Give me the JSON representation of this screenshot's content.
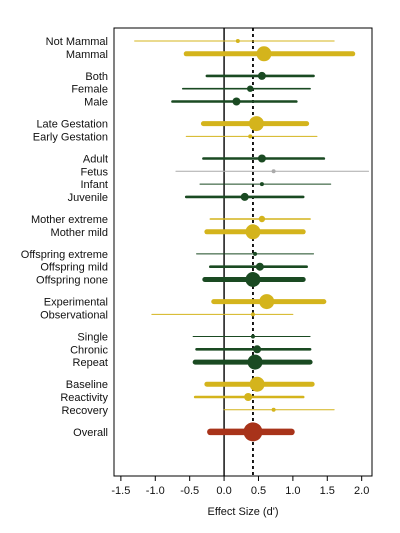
{
  "chart_data": {
    "type": "forest",
    "xlabel": "Effect Size (d')",
    "xlim": [
      -1.6,
      2.15
    ],
    "xticks": [
      -1.5,
      -1.0,
      -0.5,
      0.0,
      0.5,
      1.0,
      1.5,
      2.0
    ],
    "xtick_labels": [
      "-1.5",
      "-1.0",
      "-0.5",
      "0.0",
      "0.5",
      "1.0",
      "1.5",
      "2.0"
    ],
    "zero_line": 0.0,
    "reference_line": 0.42,
    "grid": false,
    "legend": "none",
    "colors": {
      "gold": "#d4b41c",
      "green": "#1a4a22",
      "red": "#a8331a",
      "gray": "#aaaaaa",
      "dotted": "#000000"
    },
    "groups": [
      {
        "rows": [
          {
            "label": "Not Mammal",
            "estimate": 0.2,
            "ci_low": -1.3,
            "ci_high": 1.6,
            "weight": "tiny",
            "color": "gold"
          },
          {
            "label": "Mammal",
            "estimate": 0.58,
            "ci_low": -0.55,
            "ci_high": 1.87,
            "weight": "large",
            "color": "gold"
          }
        ]
      },
      {
        "rows": [
          {
            "label": "Both",
            "estimate": 0.55,
            "ci_low": -0.25,
            "ci_high": 1.3,
            "weight": "medium",
            "color": "green"
          },
          {
            "label": "Female",
            "estimate": 0.38,
            "ci_low": -0.6,
            "ci_high": 1.25,
            "weight": "small",
            "color": "green"
          },
          {
            "label": "Male",
            "estimate": 0.18,
            "ci_low": -0.75,
            "ci_high": 1.05,
            "weight": "medium",
            "color": "green"
          }
        ]
      },
      {
        "rows": [
          {
            "label": "Late Gestation",
            "estimate": 0.47,
            "ci_low": -0.3,
            "ci_high": 1.2,
            "weight": "large",
            "color": "gold"
          },
          {
            "label": "Early Gestation",
            "estimate": 0.38,
            "ci_low": -0.55,
            "ci_high": 1.35,
            "weight": "tiny",
            "color": "gold"
          }
        ]
      },
      {
        "rows": [
          {
            "label": "Adult",
            "estimate": 0.55,
            "ci_low": -0.3,
            "ci_high": 1.45,
            "weight": "medium",
            "color": "green"
          },
          {
            "label": "Fetus",
            "estimate": 0.72,
            "ci_low": -0.7,
            "ci_high": 2.1,
            "weight": "tiny",
            "color": "gray"
          },
          {
            "label": "Infant",
            "estimate": 0.55,
            "ci_low": -0.35,
            "ci_high": 1.55,
            "weight": "tiny",
            "color": "green"
          },
          {
            "label": "Juvenile",
            "estimate": 0.3,
            "ci_low": -0.55,
            "ci_high": 1.15,
            "weight": "medium",
            "color": "green"
          }
        ]
      },
      {
        "rows": [
          {
            "label": "Mother extreme",
            "estimate": 0.55,
            "ci_low": -0.2,
            "ci_high": 1.25,
            "weight": "small",
            "color": "gold"
          },
          {
            "label": "Mother mild",
            "estimate": 0.42,
            "ci_low": -0.25,
            "ci_high": 1.15,
            "weight": "large",
            "color": "gold"
          }
        ]
      },
      {
        "rows": [
          {
            "label": "Offspring extreme",
            "estimate": 0.45,
            "ci_low": -0.4,
            "ci_high": 1.3,
            "weight": "tiny",
            "color": "green"
          },
          {
            "label": "Offspring mild",
            "estimate": 0.52,
            "ci_low": -0.2,
            "ci_high": 1.2,
            "weight": "medium",
            "color": "green"
          },
          {
            "label": "Offspring none",
            "estimate": 0.42,
            "ci_low": -0.28,
            "ci_high": 1.15,
            "weight": "large",
            "color": "green"
          }
        ]
      },
      {
        "rows": [
          {
            "label": "Experimental",
            "estimate": 0.62,
            "ci_low": -0.15,
            "ci_high": 1.45,
            "weight": "large",
            "color": "gold"
          },
          {
            "label": "Observational",
            "estimate": 0.42,
            "ci_low": -1.05,
            "ci_high": 1.0,
            "weight": "tiny",
            "color": "gold"
          }
        ]
      },
      {
        "rows": [
          {
            "label": "Single",
            "estimate": 0.42,
            "ci_low": -0.45,
            "ci_high": 1.25,
            "weight": "tiny",
            "color": "green"
          },
          {
            "label": "Chronic",
            "estimate": 0.48,
            "ci_low": -0.4,
            "ci_high": 1.25,
            "weight": "medium",
            "color": "green"
          },
          {
            "label": "Repeat",
            "estimate": 0.45,
            "ci_low": -0.42,
            "ci_high": 1.25,
            "weight": "large",
            "color": "green"
          }
        ]
      },
      {
        "rows": [
          {
            "label": "Baseline",
            "estimate": 0.48,
            "ci_low": -0.25,
            "ci_high": 1.28,
            "weight": "large",
            "color": "gold"
          },
          {
            "label": "Reactivity",
            "estimate": 0.35,
            "ci_low": -0.42,
            "ci_high": 1.15,
            "weight": "medium",
            "color": "gold"
          },
          {
            "label": "Recovery",
            "estimate": 0.72,
            "ci_low": 0.0,
            "ci_high": 1.6,
            "weight": "tiny",
            "color": "gold"
          }
        ]
      },
      {
        "rows": [
          {
            "label": "Overall",
            "estimate": 0.42,
            "ci_low": -0.2,
            "ci_high": 0.98,
            "weight": "overall",
            "color": "red"
          }
        ]
      }
    ]
  }
}
